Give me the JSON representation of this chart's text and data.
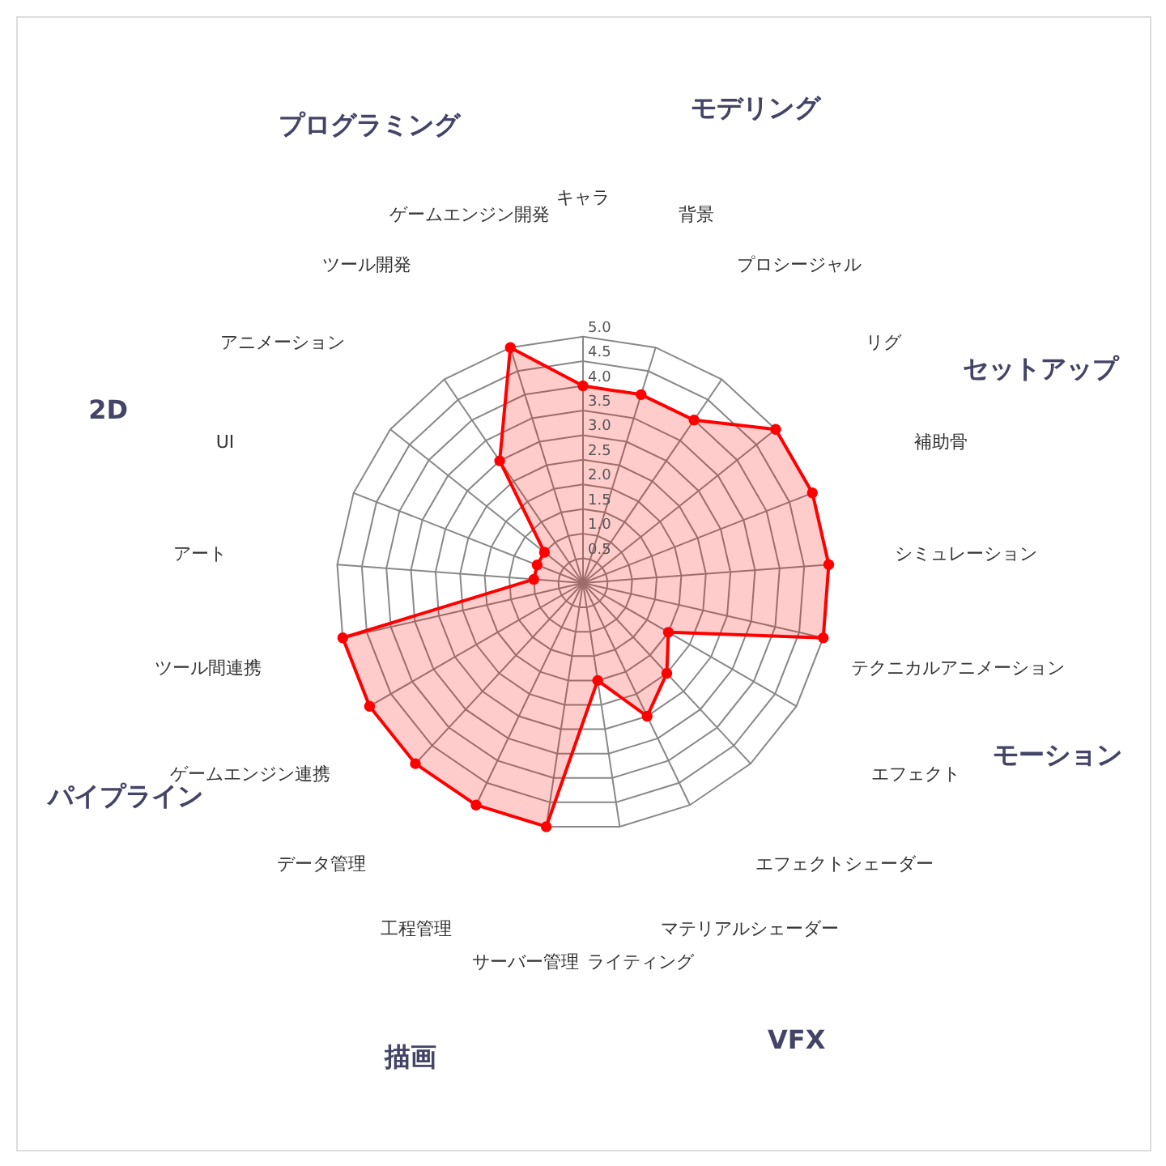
{
  "chart_data": {
    "type": "radar",
    "categories": [
      "キャラ",
      "背景",
      "プロシージャル",
      "リグ",
      "補助骨",
      "シミュレーション",
      "テクニカルアニメーション",
      "エフェクト",
      "エフェクトシェーダー",
      "マテリアルシェーダー",
      "ライティング",
      "サーバー管理",
      "工程管理",
      "データ管理",
      "ゲームエンジン連携",
      "ツール間連携",
      "アート",
      "UI",
      "アニメーション",
      "ツール開発",
      "ゲームエンジン開発"
    ],
    "series": [
      {
        "color": "#ff0000",
        "values": [
          4.0,
          4.0,
          4.0,
          5.0,
          5.0,
          5.0,
          5.0,
          2.0,
          2.5,
          3.0,
          2.0,
          5.0,
          5.0,
          5.0,
          5.0,
          5.0,
          1.0,
          1.0,
          1.0,
          3.0,
          5.0
        ]
      }
    ],
    "ylim": [
      0,
      5.0
    ],
    "yticks": [
      {
        "value": 0.5,
        "label": "0.5"
      },
      {
        "value": 1,
        "label": "1.0"
      },
      {
        "value": 1.5,
        "label": "1.5"
      },
      {
        "value": 2,
        "label": "2.0"
      },
      {
        "value": 2.5,
        "label": "2.5"
      },
      {
        "value": 3,
        "label": "3.0"
      },
      {
        "value": 3.5,
        "label": "3.5"
      },
      {
        "value": 4,
        "label": "4.0"
      },
      {
        "value": 4.5,
        "label": "4.5"
      },
      {
        "value": 5,
        "label": "5.0"
      }
    ],
    "grid": true,
    "marker": "circle",
    "line_style": "solid",
    "annotations": [
      "モデリング",
      "セットアップ",
      "モーション",
      "VFX",
      "描画",
      "パイプライン",
      "2D",
      "プログラミング"
    ]
  }
}
